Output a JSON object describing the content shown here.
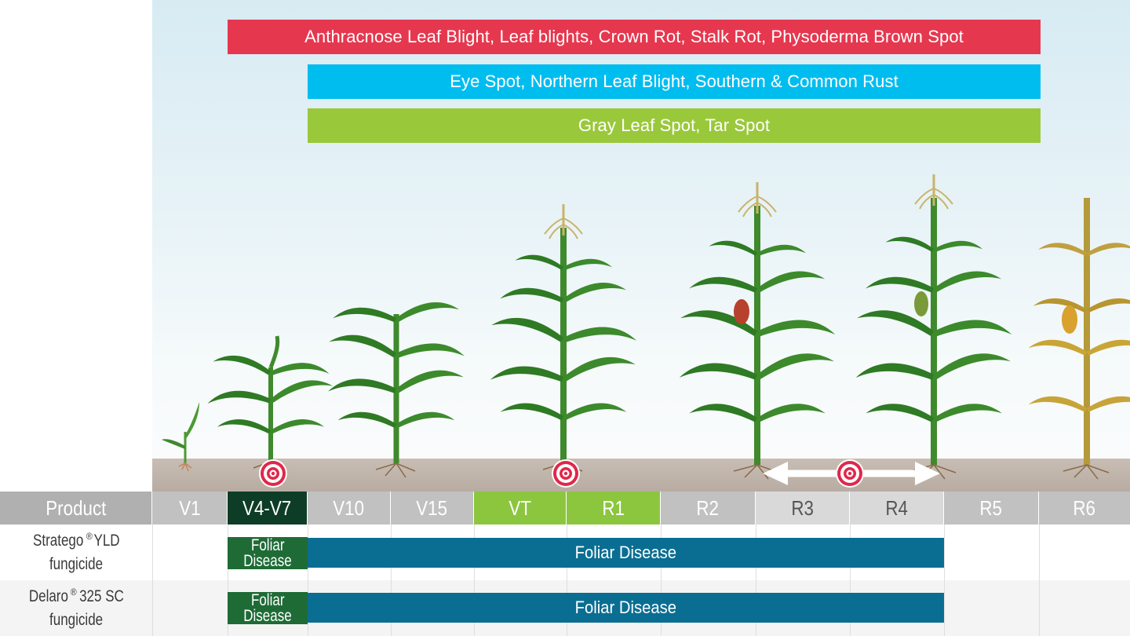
{
  "banners": [
    {
      "text": "Anthracnose Leaf Blight, Leaf blights, Crown Rot, Stalk Rot, Physoderma Brown Spot",
      "color": "#e5384f"
    },
    {
      "text": "Eye Spot, Northern Leaf Blight, Southern & Common Rust",
      "color": "#00bdf0"
    },
    {
      "text": "Gray Leaf Spot, Tar Spot",
      "color": "#9ac83b"
    }
  ],
  "table": {
    "header_label": "Product",
    "stages": [
      "V1",
      "V4-V7",
      "V10",
      "V15",
      "VT",
      "R1",
      "R2",
      "R3",
      "R4",
      "R5",
      "R6"
    ],
    "stage_colors": {
      "default": "#c1c1c1",
      "highlight_dark": "#0d3d26",
      "highlight_green": "#8cc63f",
      "light": "#d9d9d9",
      "product_header": "#b0b0b0"
    },
    "products": [
      {
        "name": "Stratego",
        "reg": "®",
        "suffix": " YLD",
        "line2": "fungicide",
        "early_label_1": "Foliar",
        "early_label_2": "Disease",
        "bar_label": "Foliar Disease"
      },
      {
        "name": "Delaro",
        "reg": "®",
        "suffix": " 325 SC",
        "line2": "fungicide",
        "early_label_1": "Foliar",
        "early_label_2": "Disease",
        "bar_label": "Foliar Disease"
      }
    ]
  },
  "icons": [
    "target-icon",
    "double-arrow-icon",
    "corn-plant-icon"
  ],
  "colors": {
    "bar_blue": "#0a6e92",
    "early_green": "#1f6b36",
    "target_red": "#e0274a"
  }
}
